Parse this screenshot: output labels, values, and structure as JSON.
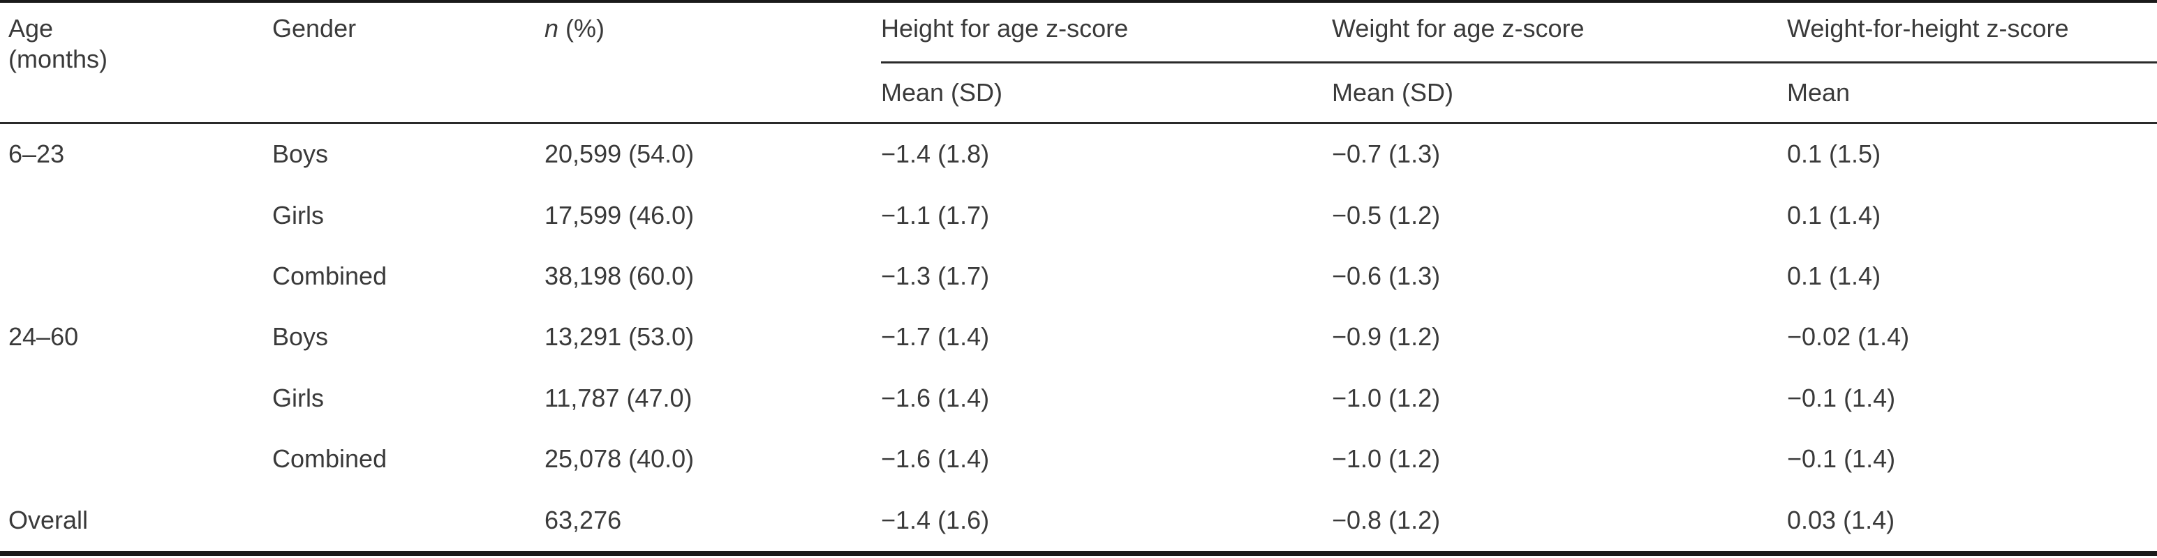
{
  "table": {
    "header": {
      "age": "Age",
      "age_unit": "(months)",
      "gender": "Gender",
      "n_italic": "n",
      "n_rest": " (%)",
      "haz": "Height for age z-score",
      "waz": "Weight for age z-score",
      "whz": "Weight-for-height z-score",
      "haz_sub": "Mean (SD)",
      "waz_sub": "Mean (SD)",
      "whz_sub": "Mean"
    },
    "rows": [
      {
        "age": "6–23",
        "gender": "Boys",
        "n": "20,599 (54.0)",
        "haz": "−1.4 (1.8)",
        "waz": "−0.7 (1.3)",
        "whz": "0.1 (1.5)"
      },
      {
        "age": "",
        "gender": "Girls",
        "n": "17,599 (46.0)",
        "haz": "−1.1 (1.7)",
        "waz": "−0.5 (1.2)",
        "whz": "0.1 (1.4)"
      },
      {
        "age": "",
        "gender": "Combined",
        "n": "38,198 (60.0)",
        "haz": "−1.3 (1.7)",
        "waz": "−0.6 (1.3)",
        "whz": "0.1 (1.4)"
      },
      {
        "age": "24–60",
        "gender": "Boys",
        "n": "13,291 (53.0)",
        "haz": "−1.7 (1.4)",
        "waz": "−0.9 (1.2)",
        "whz": "−0.02 (1.4)"
      },
      {
        "age": "",
        "gender": "Girls",
        "n": "11,787 (47.0)",
        "haz": "−1.6 (1.4)",
        "waz": "−1.0 (1.2)",
        "whz": "−0.1 (1.4)"
      },
      {
        "age": "",
        "gender": "Combined",
        "n": "25,078 (40.0)",
        "haz": "−1.6 (1.4)",
        "waz": "−1.0 (1.2)",
        "whz": "−0.1 (1.4)"
      },
      {
        "age": "Overall",
        "gender": "",
        "n": "63,276",
        "haz": "−1.4 (1.6)",
        "waz": "−0.8 (1.2)",
        "whz": "0.03 (1.4)"
      }
    ]
  }
}
